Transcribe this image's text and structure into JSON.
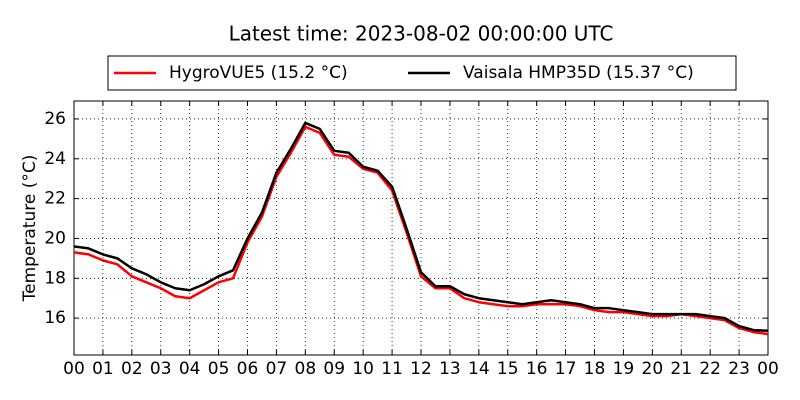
{
  "chart_data": {
    "type": "line",
    "title": "Latest time: 2023-08-02 00:00:00 UTC",
    "y_label": "Temperature (°C)",
    "x": [
      0,
      0.5,
      1,
      1.5,
      2,
      2.5,
      3,
      3.5,
      4,
      4.5,
      5,
      5.5,
      6,
      6.5,
      7,
      7.5,
      8,
      8.5,
      9,
      9.5,
      10,
      10.5,
      11,
      11.5,
      12,
      12.5,
      13,
      13.5,
      14,
      14.5,
      15,
      15.5,
      16,
      16.5,
      17,
      17.5,
      18,
      18.5,
      19,
      19.5,
      20,
      20.5,
      21,
      21.5,
      22,
      22.5,
      23,
      23.5,
      24
    ],
    "series": [
      {
        "name": "HygroVUE5 (15.2 °C)",
        "color": "#ff0000",
        "values": [
          19.3,
          19.2,
          18.9,
          18.7,
          18.1,
          17.8,
          17.5,
          17.1,
          17.0,
          17.4,
          17.8,
          18.0,
          19.8,
          21.1,
          23.1,
          24.3,
          25.6,
          25.3,
          24.2,
          24.1,
          23.5,
          23.3,
          22.4,
          20.3,
          18.1,
          17.5,
          17.5,
          17.0,
          16.8,
          16.7,
          16.6,
          16.6,
          16.7,
          16.7,
          16.7,
          16.6,
          16.4,
          16.3,
          16.3,
          16.2,
          16.1,
          16.1,
          16.2,
          16.1,
          16.0,
          15.9,
          15.5,
          15.3,
          15.2
        ]
      },
      {
        "name": "Vaisala HMP35D (15.37 °C)",
        "color": "#000000",
        "values": [
          19.6,
          19.5,
          19.2,
          19.0,
          18.5,
          18.2,
          17.8,
          17.5,
          17.4,
          17.7,
          18.1,
          18.4,
          20.0,
          21.3,
          23.3,
          24.5,
          25.8,
          25.5,
          24.4,
          24.3,
          23.6,
          23.4,
          22.6,
          20.5,
          18.3,
          17.6,
          17.6,
          17.2,
          17.0,
          16.9,
          16.8,
          16.7,
          16.8,
          16.9,
          16.8,
          16.7,
          16.5,
          16.5,
          16.4,
          16.3,
          16.2,
          16.2,
          16.2,
          16.2,
          16.1,
          16.0,
          15.6,
          15.4,
          15.37
        ]
      }
    ],
    "xlim": [
      0,
      24
    ],
    "xticks": [
      {
        "value": 0,
        "label": "00"
      },
      {
        "value": 1,
        "label": "01"
      },
      {
        "value": 2,
        "label": "02"
      },
      {
        "value": 3,
        "label": "03"
      },
      {
        "value": 4,
        "label": "04"
      },
      {
        "value": 5,
        "label": "05"
      },
      {
        "value": 6,
        "label": "06"
      },
      {
        "value": 7,
        "label": "07"
      },
      {
        "value": 8,
        "label": "08"
      },
      {
        "value": 9,
        "label": "09"
      },
      {
        "value": 10,
        "label": "10"
      },
      {
        "value": 11,
        "label": "11"
      },
      {
        "value": 12,
        "label": "12"
      },
      {
        "value": 13,
        "label": "13"
      },
      {
        "value": 14,
        "label": "14"
      },
      {
        "value": 15,
        "label": "15"
      },
      {
        "value": 16,
        "label": "16"
      },
      {
        "value": 17,
        "label": "17"
      },
      {
        "value": 18,
        "label": "18"
      },
      {
        "value": 19,
        "label": "19"
      },
      {
        "value": 20,
        "label": "20"
      },
      {
        "value": 21,
        "label": "21"
      },
      {
        "value": 22,
        "label": "22"
      },
      {
        "value": 23,
        "label": "23"
      },
      {
        "value": 24,
        "label": "00"
      }
    ],
    "ylim": [
      14.15,
      26.9
    ],
    "yticks": [
      16,
      18,
      20,
      22,
      24,
      26
    ],
    "grid": true
  }
}
